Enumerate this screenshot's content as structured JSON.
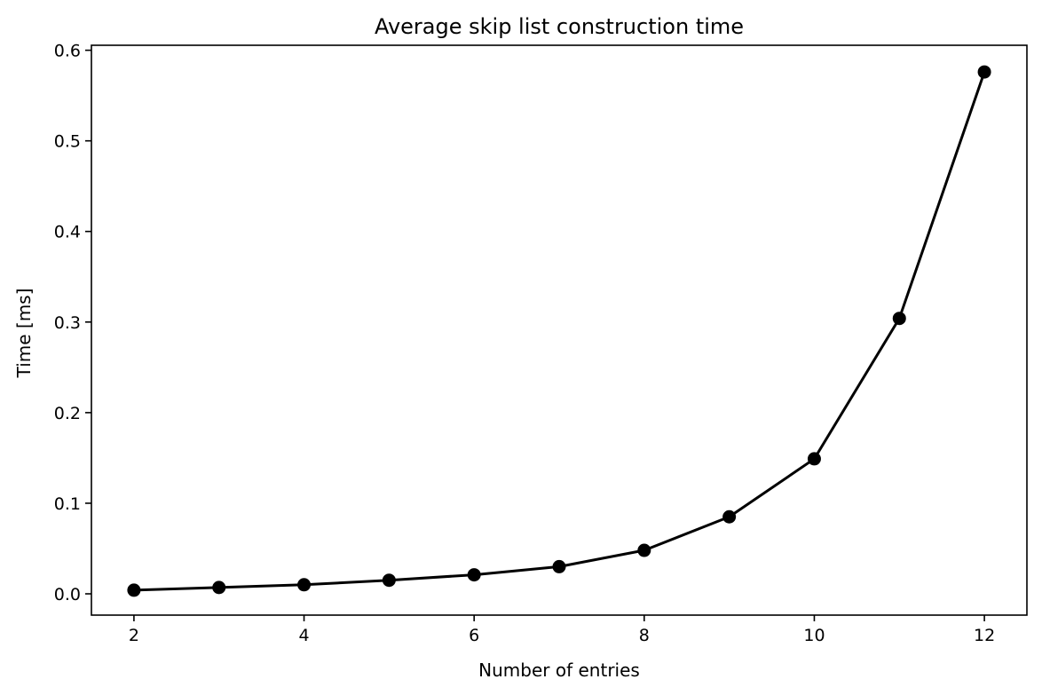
{
  "chart_data": {
    "type": "line",
    "title": "Average skip list construction time",
    "xlabel": "Number of entries",
    "ylabel": "Time [ms]",
    "x": [
      2,
      3,
      4,
      5,
      6,
      7,
      8,
      9,
      10,
      11,
      12
    ],
    "series": [
      {
        "values": [
          0.004,
          0.007,
          0.01,
          0.015,
          0.021,
          0.03,
          0.048,
          0.085,
          0.149,
          0.304,
          0.576
        ],
        "color": "#000000",
        "marker": "circle"
      }
    ],
    "xlim": [
      1.5,
      12.5
    ],
    "ylim": [
      -0.0235,
      0.6055
    ],
    "x_ticks": [
      2,
      4,
      6,
      8,
      10,
      12
    ],
    "x_tick_labels": [
      "2",
      "4",
      "6",
      "8",
      "10",
      "12"
    ],
    "y_ticks": [
      0.0,
      0.1,
      0.2,
      0.3,
      0.4,
      0.5,
      0.6
    ],
    "y_tick_labels": [
      "0.0",
      "0.1",
      "0.2",
      "0.3",
      "0.4",
      "0.5",
      "0.6"
    ],
    "grid": false,
    "legend": "none"
  }
}
